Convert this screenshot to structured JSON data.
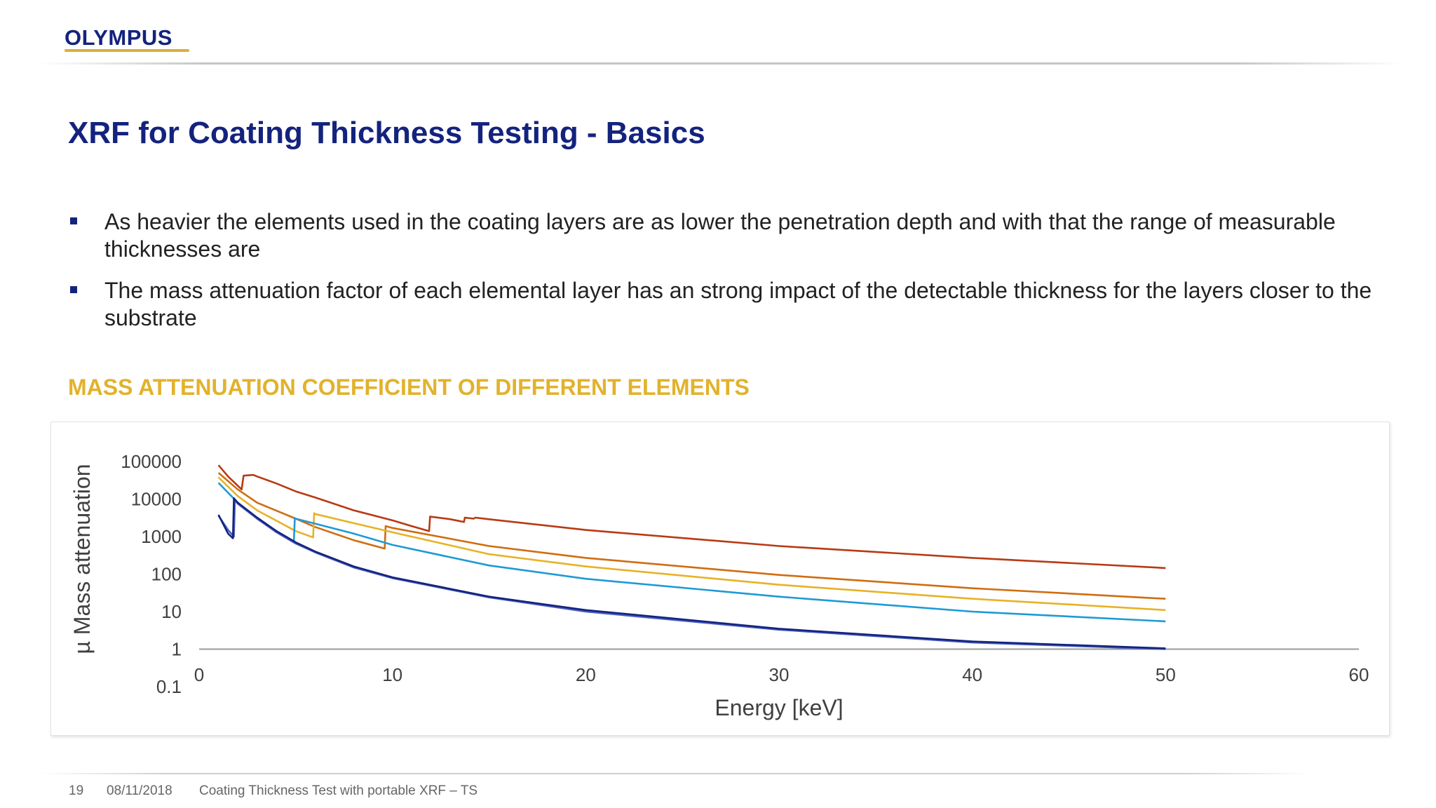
{
  "logo": "OLYMPUS",
  "title": "XRF for Coating Thickness Testing - Basics",
  "bullets": [
    "As heavier the elements used in the coating layers are as lower the penetration depth and with that the range of measurable thicknesses are",
    "The mass attenuation factor of each elemental layer has an strong impact of the detectable thickness for the layers closer to the substrate"
  ],
  "subtitle": "MASS ATTENUATION COEFFICIENT OF DIFFERENT ELEMENTS",
  "footer": {
    "page": "19",
    "date": "08/11/2018",
    "description": "Coating Thickness Test with portable XRF – TS"
  },
  "chart_data": {
    "type": "line",
    "title": "",
    "xlabel": "Energy [keV]",
    "ylabel": "µ Mass attenuation",
    "xlim": [
      0,
      60
    ],
    "ylim": [
      0.1,
      100000
    ],
    "yscale": "log",
    "xticks": [
      "0",
      "10",
      "20",
      "30",
      "40",
      "50",
      "60"
    ],
    "yticks": [
      "0.1",
      "1",
      "10",
      "100",
      "1000",
      "10000",
      "100000"
    ],
    "grid": false,
    "legend": "none",
    "series": [
      {
        "color": "#b83a14",
        "points": [
          [
            1,
            80000
          ],
          [
            1.5,
            40000
          ],
          [
            2.2,
            18000
          ],
          [
            2.3,
            42000
          ],
          [
            2.8,
            44000
          ],
          [
            3,
            40000
          ],
          [
            4,
            26000
          ],
          [
            5,
            16000
          ],
          [
            6,
            11000
          ],
          [
            8,
            5000
          ],
          [
            10,
            2700
          ],
          [
            11,
            1900
          ],
          [
            11.9,
            1400
          ],
          [
            11.95,
            3400
          ],
          [
            13,
            2900
          ],
          [
            13.7,
            2450
          ],
          [
            13.75,
            3200
          ],
          [
            14.2,
            3000
          ],
          [
            14.3,
            3200
          ],
          [
            15,
            2900
          ],
          [
            20,
            1500
          ],
          [
            30,
            560
          ],
          [
            40,
            270
          ],
          [
            50,
            145
          ]
        ]
      },
      {
        "color": "#d06d10",
        "points": [
          [
            1,
            50000
          ],
          [
            2,
            18000
          ],
          [
            3,
            8000
          ],
          [
            5,
            3000
          ],
          [
            6,
            1800
          ],
          [
            8,
            800
          ],
          [
            9.6,
            480
          ],
          [
            9.65,
            1900
          ],
          [
            10,
            1700
          ],
          [
            15,
            560
          ],
          [
            20,
            270
          ],
          [
            30,
            95
          ],
          [
            40,
            42
          ],
          [
            50,
            22
          ]
        ]
      },
      {
        "color": "#e8b227",
        "points": [
          [
            1,
            38000
          ],
          [
            2,
            12000
          ],
          [
            3,
            5000
          ],
          [
            5,
            1400
          ],
          [
            5.9,
            950
          ],
          [
            5.95,
            4200
          ],
          [
            6,
            4000
          ],
          [
            10,
            1300
          ],
          [
            15,
            340
          ],
          [
            20,
            160
          ],
          [
            30,
            52
          ],
          [
            40,
            22
          ],
          [
            50,
            11
          ]
        ]
      },
      {
        "color": "#1e9ad6",
        "points": [
          [
            1,
            27000
          ],
          [
            2,
            8000
          ],
          [
            3,
            3000
          ],
          [
            4,
            1400
          ],
          [
            4.9,
            750
          ],
          [
            4.95,
            3100
          ],
          [
            5,
            3000
          ],
          [
            8,
            1200
          ],
          [
            10,
            600
          ],
          [
            15,
            170
          ],
          [
            20,
            75
          ],
          [
            30,
            25
          ],
          [
            40,
            10
          ],
          [
            50,
            5.5
          ]
        ]
      },
      {
        "color": "#4a5fc0",
        "points": [
          [
            1,
            3600
          ],
          [
            1.5,
            1500
          ],
          [
            1.8,
            1000
          ],
          [
            1.85,
            9500
          ],
          [
            2,
            7500
          ],
          [
            3,
            3000
          ],
          [
            4,
            1300
          ],
          [
            5,
            650
          ],
          [
            6,
            380
          ],
          [
            8,
            150
          ],
          [
            10,
            78
          ],
          [
            15,
            24
          ],
          [
            20,
            10
          ],
          [
            30,
            3.3
          ],
          [
            40,
            1.5
          ],
          [
            50,
            1.0
          ]
        ]
      },
      {
        "color": "#13237d",
        "points": [
          [
            1,
            3800
          ],
          [
            1.5,
            1200
          ],
          [
            1.75,
            900
          ],
          [
            1.8,
            10500
          ],
          [
            2,
            8000
          ],
          [
            3,
            3200
          ],
          [
            4,
            1400
          ],
          [
            5,
            700
          ],
          [
            6,
            400
          ],
          [
            8,
            160
          ],
          [
            10,
            82
          ],
          [
            15,
            25
          ],
          [
            20,
            11
          ],
          [
            30,
            3.5
          ],
          [
            40,
            1.6
          ],
          [
            50,
            1.05
          ]
        ]
      }
    ]
  }
}
